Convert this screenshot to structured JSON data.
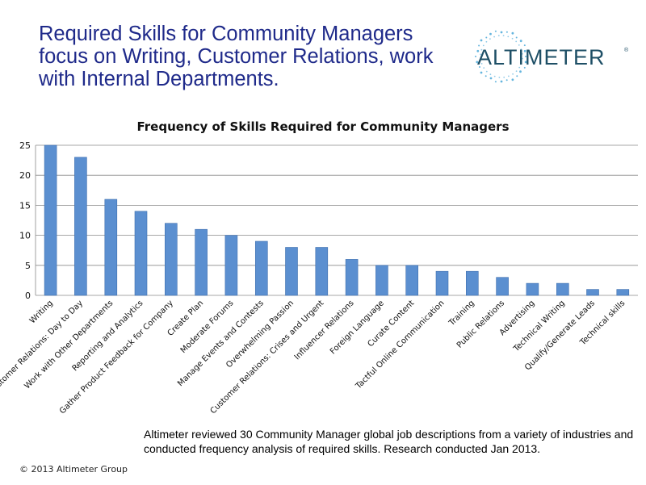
{
  "headline": "Required Skills for Community Managers focus on Writing, Customer Relations, work with Internal Departments.",
  "logo": {
    "text": "ALTIMETER",
    "mark": "®",
    "icon": "radial-burst-icon",
    "color": "#1e4f66",
    "accent": "#4aa8d8"
  },
  "chart_data": {
    "type": "bar",
    "title": "Frequency of Skills Required for Community Managers",
    "categories": [
      "Writing",
      "Customer Relations: Day to Day",
      "Work with Other Departments",
      "Reporting and Analytics",
      "Gather Product Feedback for Company",
      "Create Plan",
      "Moderate Forums",
      "Manage Events and Contests",
      "Overwhelming Passion",
      "Customer Relations: Crises and Urgent",
      "Influencer Relations",
      "Foreign Language",
      "Curate Content",
      "Tactful Online Communication",
      "Training",
      "Public Relations",
      "Advertising",
      "Technical Writing",
      "Qualify/Generate Leads",
      "Technical skills"
    ],
    "values": [
      25,
      23,
      16,
      14,
      12,
      11,
      10,
      9,
      8,
      8,
      6,
      5,
      5,
      4,
      4,
      3,
      2,
      2,
      1,
      1
    ],
    "xlabel": "",
    "ylabel": "",
    "ylim": [
      0,
      25
    ],
    "yticks": [
      "0",
      "5",
      "10",
      "15",
      "20",
      "25"
    ],
    "grid": true,
    "bar_color": "#5b8fd0",
    "bar_edge": "#3f6fae"
  },
  "note": "Altimeter reviewed 30 Community Manager global job descriptions from a variety of industries and conducted frequency analysis of required skills.  Research conducted Jan 2013.",
  "copyright": "© 2013 Altimeter Group"
}
